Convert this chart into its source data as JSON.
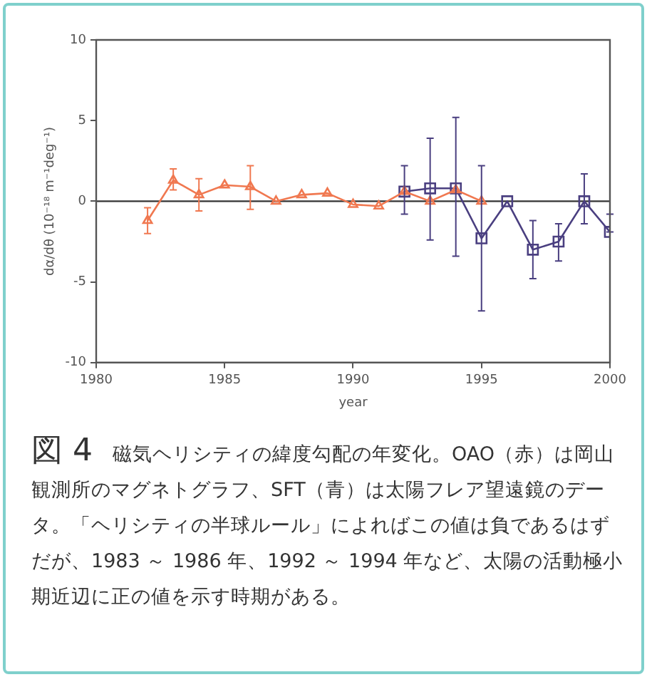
{
  "chart_data": {
    "type": "line",
    "xlabel": "year",
    "ylabel": "dα/dθ (10⁻¹⁸ m⁻¹deg⁻¹)",
    "xlim": [
      1980,
      2000
    ],
    "xticks": [
      1980,
      1985,
      1990,
      1995,
      {
        "value": 2000,
        "label": "2000"
      }
    ],
    "ylim": [
      -10,
      10
    ],
    "yticks": [
      -10,
      -5,
      0,
      5,
      10
    ],
    "grid": false,
    "legend": false,
    "ref_lines": [
      {
        "axis": "y",
        "value": 0,
        "color": "#333333"
      }
    ],
    "series": [
      {
        "color": "#f07850",
        "marker": "triangle",
        "x": [
          1982,
          1983,
          1984,
          1985,
          1986,
          1987,
          1988,
          1989,
          1990,
          1991,
          1992,
          1993,
          1994,
          1995
        ],
        "values": [
          -1.2,
          1.3,
          0.4,
          1.0,
          0.9,
          0,
          0.4,
          0.5,
          -0.2,
          -0.3,
          0.6,
          0,
          0.7,
          0
        ],
        "errors": [
          [
            -2.0,
            -0.4
          ],
          [
            0.7,
            2.0
          ],
          [
            -0.6,
            1.4
          ],
          null,
          [
            -0.5,
            2.2
          ],
          null,
          null,
          null,
          null,
          null,
          null,
          null,
          null,
          null
        ]
      },
      {
        "color": "#4a3f80",
        "marker": "square",
        "x": [
          1992,
          1993,
          1994,
          1995,
          1996,
          1997,
          1998,
          1999,
          2000
        ],
        "values": [
          0.6,
          0.8,
          0.8,
          -2.3,
          0,
          -3.0,
          -2.5,
          0,
          -1.9
        ],
        "errors": [
          [
            -0.8,
            2.2
          ],
          [
            -2.4,
            3.9
          ],
          [
            -3.4,
            5.2
          ],
          [
            -6.8,
            2.2
          ],
          null,
          [
            -4.8,
            -1.2
          ],
          [
            -3.7,
            -1.4
          ],
          [
            -1.4,
            1.7
          ],
          [
            -1.9,
            -0.8
          ]
        ]
      }
    ],
    "annotations": [
      "図 4",
      "磁気ヘリシティの緯度勾配の年変化。OAO（赤）は岡山観測所のマグネトグラフ、SFT（青）は太陽フレア望遠鏡のデータ。「ヘリシティの半球ルール」によればこの値は負であるはずだが、1983 ～ 1986 年、1992 ～ 1994 年など、太陽の活動極小期近辺に正の値を示す時期がある。"
    ]
  }
}
